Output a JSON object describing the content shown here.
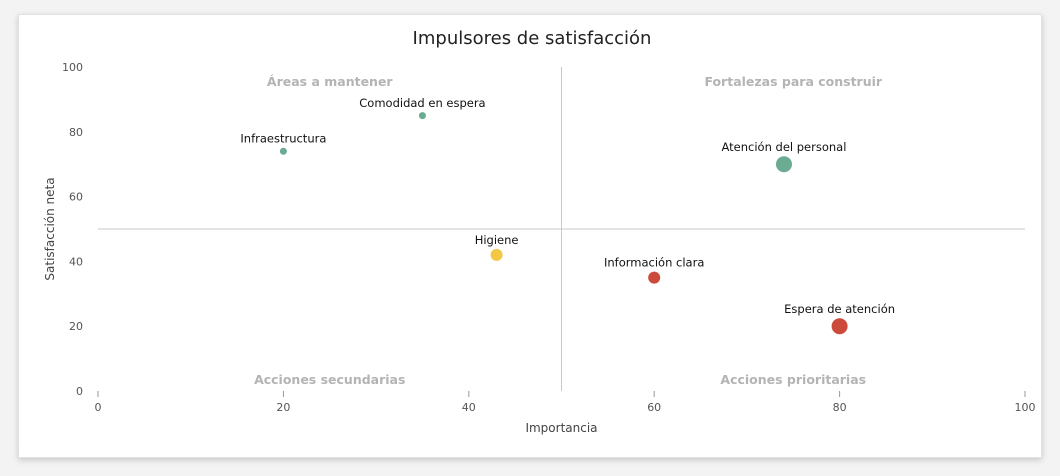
{
  "chart_data": {
    "type": "scatter",
    "title": "Impulsores de satisfacción",
    "xlabel": "Importancia",
    "ylabel": "Satisfacción neta",
    "xlim": [
      0,
      100
    ],
    "ylim": [
      0,
      100
    ],
    "xticks": [
      "0",
      "20",
      "40",
      "60",
      "80",
      "100"
    ],
    "yticks": [
      "0",
      "20",
      "40",
      "60",
      "80",
      "100"
    ],
    "divider": {
      "x": 50,
      "y": 50
    },
    "quadrants": {
      "top_left": "Áreas a mantener",
      "top_right": "Fortalezas para construir",
      "bottom_left": "Acciones secundarias",
      "bottom_right": "Acciones prioritarias"
    },
    "points": [
      {
        "label": "Comodidad en espera",
        "x": 35,
        "y": 85,
        "size": "small",
        "color": "#6aab91"
      },
      {
        "label": "Infraestructura",
        "x": 20,
        "y": 74,
        "size": "small",
        "color": "#6aab91"
      },
      {
        "label": "Atención del personal",
        "x": 74,
        "y": 70,
        "size": "large",
        "color": "#6aab91"
      },
      {
        "label": "Higiene",
        "x": 43,
        "y": 42,
        "size": "medium",
        "color": "#f2c744"
      },
      {
        "label": "Información clara",
        "x": 60,
        "y": 35,
        "size": "medium",
        "color": "#cc4a3c"
      },
      {
        "label": "Espera de atención",
        "x": 80,
        "y": 20,
        "size": "large",
        "color": "#cc4a3c"
      }
    ]
  }
}
